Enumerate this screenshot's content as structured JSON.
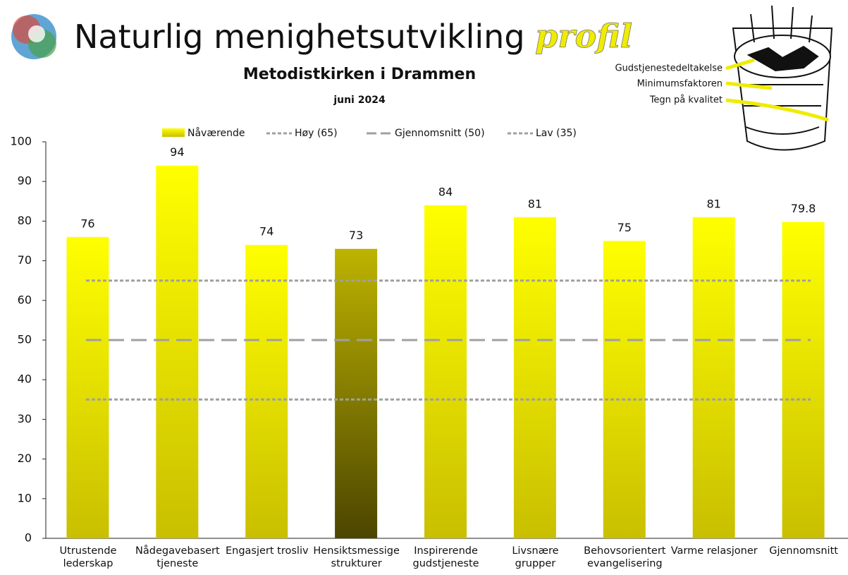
{
  "chart_data": {
    "type": "bar",
    "title": "Naturlig menighetsutvikling",
    "title_emphasis": "profil",
    "subtitle": "Metodistkirken i Drammen",
    "date": "juni 2024",
    "annotations": [
      "Gudstjenestedeltakelse",
      "Minimumsfaktoren",
      "Tegn på kvalitet"
    ],
    "categories": [
      "Utrustende lederskap",
      "Nådegavebasert tjeneste",
      "Engasjert trosliv",
      "Hensiktsmessige strukturer",
      "Inspirerende gudstjeneste",
      "Livsnære grupper",
      "Behovsorientert evangelisering",
      "Varme relasjoner",
      "Gjennomsnitt"
    ],
    "series": [
      {
        "name": "Nåværende",
        "color": "#f2ee00",
        "values": [
          76,
          94,
          74,
          73,
          84,
          81,
          75,
          81,
          79.8
        ]
      }
    ],
    "reference_lines": [
      {
        "name": "Høy (65)",
        "value": 65,
        "dash": "dotted",
        "color": "#a0a0a0"
      },
      {
        "name": "Gjennomsnitt (50)",
        "value": 50,
        "dash": "dashed",
        "color": "#a0a0a0"
      },
      {
        "name": "Lav (35)",
        "value": 35,
        "dash": "dotted",
        "color": "#a0a0a0"
      }
    ],
    "ylim": [
      0,
      100
    ],
    "yticks": [
      0,
      10,
      20,
      30,
      40,
      50,
      60,
      70,
      80,
      90,
      100
    ],
    "grid": false
  }
}
